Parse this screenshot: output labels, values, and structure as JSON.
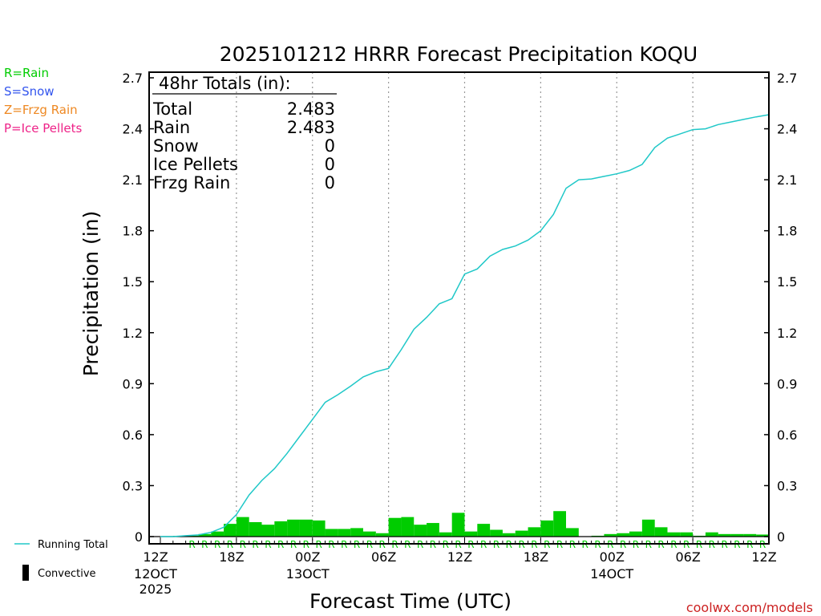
{
  "chart_data": {
    "type": "bar+line",
    "title": "2025101212 HRRR Forecast Precipitation KOQU",
    "xlabel": "Forecast Time (UTC)",
    "ylabel": "Precipitation (in)",
    "ylim": [
      0,
      2.7
    ],
    "yticks": [
      "0",
      "0.3",
      "0.6",
      "0.9",
      "1.2",
      "1.5",
      "1.8",
      "2.1",
      "2.4",
      "2.7"
    ],
    "x_range_hours": [
      0,
      48
    ],
    "x_ticks": [
      {
        "hour": 0,
        "label": "12Z",
        "date": "12OCT",
        "year": "2025"
      },
      {
        "hour": 6,
        "label": "18Z",
        "date": "",
        "year": ""
      },
      {
        "hour": 12,
        "label": "00Z",
        "date": "13OCT",
        "year": ""
      },
      {
        "hour": 18,
        "label": "06Z",
        "date": "",
        "year": ""
      },
      {
        "hour": 24,
        "label": "12Z",
        "date": "",
        "year": ""
      },
      {
        "hour": 30,
        "label": "18Z",
        "date": "",
        "year": ""
      },
      {
        "hour": 36,
        "label": "00Z",
        "date": "14OCT",
        "year": ""
      },
      {
        "hour": 42,
        "label": "06Z",
        "date": "",
        "year": ""
      },
      {
        "hour": 48,
        "label": "12Z",
        "date": "",
        "year": ""
      }
    ],
    "series": [
      {
        "name": "Running Total",
        "kind": "line",
        "color": "#20c8c8",
        "hours": [
          0,
          1,
          2,
          3,
          4,
          5,
          6,
          7,
          8,
          9,
          10,
          11,
          12,
          13,
          14,
          15,
          16,
          17,
          18,
          19,
          20,
          21,
          22,
          23,
          24,
          25,
          26,
          27,
          28,
          29,
          30,
          31,
          32,
          33,
          34,
          35,
          36,
          37,
          38,
          39,
          40,
          41,
          42,
          43,
          44,
          45,
          46,
          47,
          48
        ],
        "values": [
          0,
          0,
          0.005,
          0.01,
          0.025,
          0.055,
          0.13,
          0.245,
          0.33,
          0.4,
          0.49,
          0.59,
          0.69,
          0.79,
          0.835,
          0.885,
          0.94,
          0.97,
          0.99,
          1.1,
          1.22,
          1.29,
          1.37,
          1.4,
          1.545,
          1.575,
          1.65,
          1.69,
          1.71,
          1.745,
          1.8,
          1.895,
          2.05,
          2.1,
          2.105,
          2.12,
          2.135,
          2.155,
          2.19,
          2.29,
          2.345,
          2.37,
          2.395,
          2.4,
          2.425,
          2.44,
          2.455,
          2.47,
          2.483
        ]
      },
      {
        "name": "Hourly Rain",
        "kind": "bar",
        "color": "#00cc00",
        "hours": [
          1,
          2,
          3,
          4,
          5,
          6,
          7,
          8,
          9,
          10,
          11,
          12,
          13,
          14,
          15,
          16,
          17,
          18,
          19,
          20,
          21,
          22,
          23,
          24,
          25,
          26,
          27,
          28,
          29,
          30,
          31,
          32,
          33,
          34,
          35,
          36,
          37,
          38,
          39,
          40,
          41,
          42,
          43,
          44,
          45,
          46,
          47,
          48
        ],
        "values": [
          0,
          0.004,
          0.006,
          0.015,
          0.03,
          0.075,
          0.115,
          0.085,
          0.07,
          0.09,
          0.1,
          0.1,
          0.095,
          0.045,
          0.045,
          0.05,
          0.03,
          0.02,
          0.11,
          0.115,
          0.07,
          0.08,
          0.025,
          0.14,
          0.03,
          0.075,
          0.04,
          0.02,
          0.035,
          0.055,
          0.095,
          0.15,
          0.05,
          0,
          0.005,
          0.015,
          0.02,
          0.03,
          0.1,
          0.055,
          0.025,
          0.025,
          0.005,
          0.025,
          0.015,
          0.015,
          0.015,
          0.012
        ]
      }
    ],
    "type_markers": {
      "symbol": "R",
      "hours": [
        3,
        4,
        5,
        6,
        7,
        8,
        9,
        10,
        11,
        12,
        13,
        14,
        15,
        16,
        17,
        18,
        19,
        20,
        21,
        22,
        23,
        24,
        25,
        26,
        27,
        28,
        29,
        30,
        31,
        32,
        33,
        34,
        35,
        36,
        37,
        38,
        39,
        40,
        41,
        42,
        43,
        44,
        45,
        46,
        47,
        48
      ]
    },
    "precip_type_key": [
      {
        "label": "R=Rain",
        "color": "#00cc00"
      },
      {
        "label": "S=Snow",
        "color": "#3355ee"
      },
      {
        "label": "Z=Frzg Rain",
        "color": "#ee8822"
      },
      {
        "label": "P=Ice Pellets",
        "color": "#ee2288"
      }
    ],
    "bottom_legend": [
      {
        "label": "Running Total",
        "kind": "line",
        "color": "#20c8c8"
      },
      {
        "label": "Convective",
        "kind": "bar",
        "color": "#000000"
      }
    ],
    "totals": {
      "heading": "48hr Totals (in):",
      "rows": [
        {
          "label": "Total",
          "value": "2.483"
        },
        {
          "label": "Rain",
          "value": "2.483"
        },
        {
          "label": "Snow",
          "value": "0"
        },
        {
          "label": "Ice Pellets",
          "value": "0"
        },
        {
          "label": "Frzg Rain",
          "value": "0"
        }
      ]
    },
    "credit": "coolwx.com/models"
  }
}
